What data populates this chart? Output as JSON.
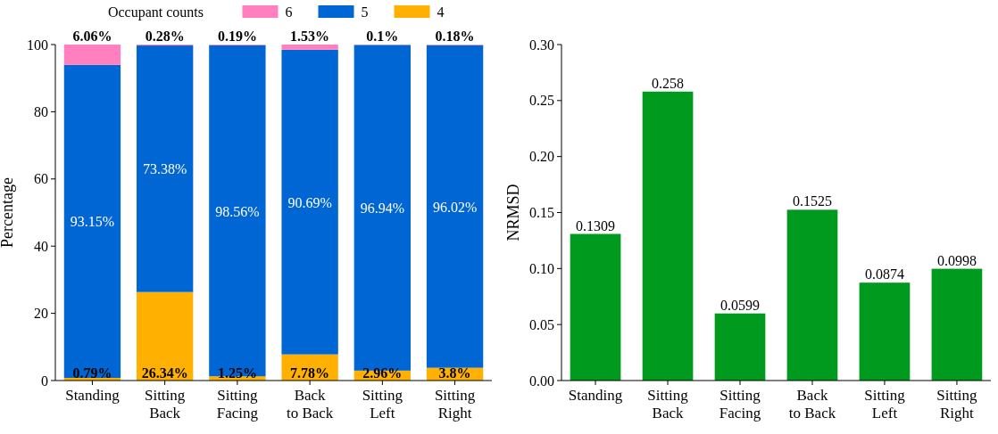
{
  "chart_data": [
    {
      "type": "bar",
      "stacked": true,
      "ylabel": "Percentage",
      "legend_title": "Occupant counts",
      "legend": "top",
      "categories": [
        "Standing",
        "Sitting Back",
        "Sitting Facing",
        "Back to Back",
        "Sitting Left",
        "Sitting Right"
      ],
      "ylim": [
        0,
        100
      ],
      "yticks": [
        0,
        20,
        40,
        60,
        80,
        100
      ],
      "series": [
        {
          "name": "4",
          "color": "#ffb000",
          "values": [
            0.79,
            26.34,
            1.25,
            7.78,
            2.96,
            3.8
          ],
          "value_labels": [
            "0.79%",
            "26.34%",
            "1.25%",
            "7.78%",
            "2.96%",
            "3.8%"
          ]
        },
        {
          "name": "5",
          "color": "#0066d4",
          "values": [
            93.15,
            73.38,
            98.56,
            90.69,
            96.94,
            96.02
          ],
          "value_labels": [
            "93.15%",
            "73.38%",
            "98.56%",
            "90.69%",
            "96.94%",
            "96.02%"
          ]
        },
        {
          "name": "6",
          "color": "#ff7fbf",
          "values": [
            6.06,
            0.28,
            0.19,
            1.53,
            0.1,
            0.18
          ],
          "value_labels": [
            "6.06%",
            "0.28%",
            "0.19%",
            "1.53%",
            "0.1%",
            "0.18%"
          ]
        }
      ]
    },
    {
      "type": "bar",
      "ylabel": "NRMSD",
      "data_labels": true,
      "categories": [
        "Standing",
        "Sitting Back",
        "Sitting Facing",
        "Back to Back",
        "Sitting Left",
        "Sitting Right"
      ],
      "ylim": [
        0,
        0.3
      ],
      "yticks": [
        {
          "value": 0,
          "label": "0.00"
        },
        {
          "value": 0.05,
          "label": "0.05"
        },
        {
          "value": 0.1,
          "label": "0.10"
        },
        {
          "value": 0.15,
          "label": "0.15"
        },
        {
          "value": 0.2,
          "label": "0.20"
        },
        {
          "value": 0.25,
          "label": "0.25"
        },
        {
          "value": 0.3,
          "label": "0.30"
        }
      ],
      "series": [
        {
          "color": "#009a1f",
          "values": [
            0.1309,
            0.258,
            0.0599,
            0.1525,
            0.0874,
            0.0998
          ]
        }
      ]
    }
  ]
}
